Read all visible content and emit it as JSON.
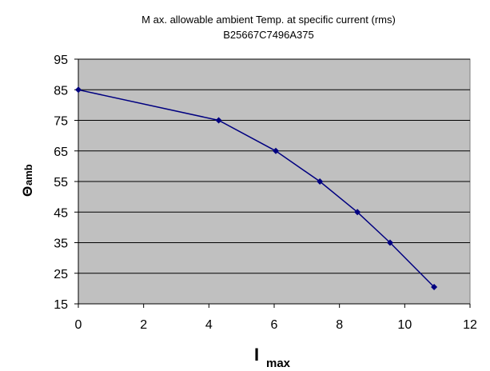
{
  "chart_data": {
    "type": "line",
    "title": "M ax. allowable ambient Temp. at specific current (rms)",
    "subtitle": "B25667C7496A375",
    "xlabel_main": "I",
    "xlabel_sub": "max",
    "ylabel_main": "Θ",
    "ylabel_sub": "amb",
    "xlim": [
      0,
      12
    ],
    "ylim": [
      15,
      95
    ],
    "xticks": [
      0,
      2,
      4,
      6,
      8,
      10,
      12
    ],
    "yticks": [
      15,
      25,
      35,
      45,
      55,
      65,
      75,
      85,
      95
    ],
    "grid": "horizontal",
    "plot_bg": "#c0c0c0",
    "line_color": "#000080",
    "series": [
      {
        "x": [
          0,
          4.3,
          6.05,
          7.4,
          8.55,
          9.55,
          10.9
        ],
        "y": [
          85,
          75,
          65,
          55,
          45,
          35,
          20.5
        ]
      }
    ]
  }
}
